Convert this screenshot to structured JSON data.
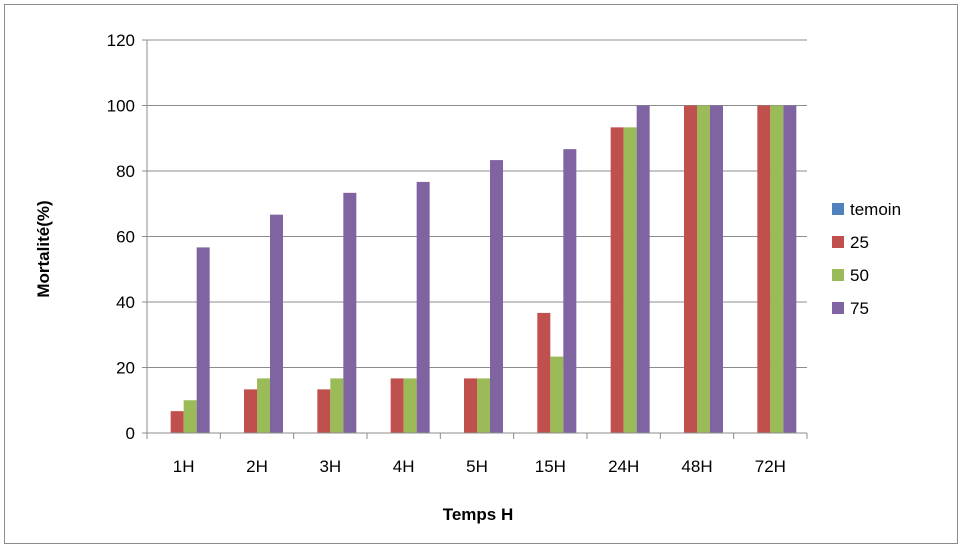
{
  "chart_data": {
    "type": "bar",
    "categories": [
      "1H",
      "2H",
      "3H",
      "4H",
      "5H",
      "15H",
      "24H",
      "48H",
      "72H"
    ],
    "series": [
      {
        "name": "temoin",
        "color": "#4F81BD",
        "values": [
          0,
          0,
          0,
          0,
          0,
          0,
          0,
          0,
          0
        ]
      },
      {
        "name": "25",
        "color": "#C0504D",
        "values": [
          6.67,
          13.33,
          13.33,
          16.67,
          16.67,
          36.67,
          93.33,
          100,
          100
        ]
      },
      {
        "name": "50",
        "color": "#9BBB59",
        "values": [
          10,
          16.67,
          16.67,
          16.67,
          16.67,
          23.33,
          93.33,
          100,
          100
        ]
      },
      {
        "name": "75",
        "color": "#8064A2",
        "values": [
          56.67,
          66.67,
          73.33,
          76.67,
          83.33,
          86.67,
          100,
          100,
          100
        ]
      }
    ],
    "xlabel": "Temps H",
    "ylabel": "Mortalité(%)",
    "ylim": [
      0,
      120
    ],
    "yticks": [
      0,
      20,
      40,
      60,
      80,
      100,
      120
    ],
    "grid": true,
    "legend_position": "right"
  }
}
